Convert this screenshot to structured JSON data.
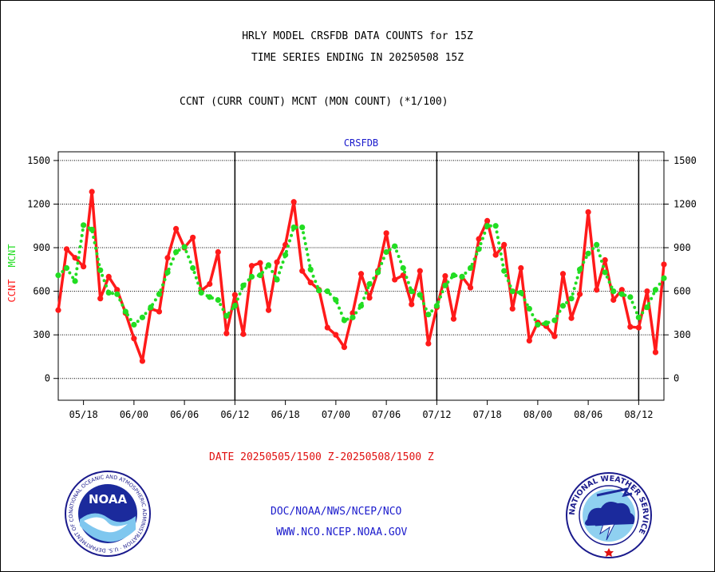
{
  "header": {
    "title_line1": "HRLY MODEL CRSFDB DATA COUNTS for 15Z",
    "title_line2": "TIME SERIES ENDING IN 20250508 15Z",
    "subtitle": "CCNT (CURR COUNT) MCNT (MON COUNT) (*1/100)"
  },
  "footer": {
    "date_range": "DATE 20250505/1500 Z-20250508/1500 Z",
    "link1": "DOC/NOAA/NWS/NCEP/NCO",
    "link2": "WWW.NCO.NCEP.NOAA.GOV"
  },
  "logos": {
    "noaa_text": "NOAA",
    "noaa_ring": "NATIONAL OCEANIC AND ATMOSPHERIC ADMINISTRATION · U.S. DEPARTMENT OF COMMERCE",
    "nws_ring": "NATIONAL WEATHER SERVICE"
  },
  "colors": {
    "ccnt": "#ff1a1a",
    "mcnt": "#22dd22",
    "panel_label": "#1a1acc",
    "footer_red": "#e01010",
    "footer_blue": "#1a1acc"
  },
  "chart_data": {
    "type": "line",
    "panel_label": "CRSFDB",
    "ylabel_red": "CCNT",
    "ylabel_green": "MCNT",
    "ylim": [
      -150,
      1560
    ],
    "yticks": [
      0,
      300,
      600,
      900,
      1200,
      1500
    ],
    "ytick_labels": [
      "0",
      "300",
      "600",
      "900",
      "1200",
      "1500"
    ],
    "xlim": [
      0,
      72
    ],
    "xticks": [
      3,
      9,
      15,
      21,
      27,
      33,
      39,
      45,
      51,
      57,
      63,
      69
    ],
    "xtick_labels": [
      "05/18",
      "06/00",
      "06/06",
      "06/12",
      "06/18",
      "07/00",
      "07/06",
      "07/12",
      "07/18",
      "08/00",
      "08/06",
      "08/12"
    ],
    "day_boundaries": [
      21,
      45,
      69
    ],
    "grid": true,
    "series": [
      {
        "name": "CCNT",
        "style": "solid",
        "x": [
          0,
          1,
          2,
          3,
          4,
          5,
          6,
          7,
          8,
          9,
          10,
          11,
          12,
          13,
          14,
          15,
          16,
          17,
          18,
          19,
          20,
          21,
          22,
          23,
          24,
          25,
          26,
          27,
          28,
          29,
          30,
          31,
          32,
          33,
          34,
          35,
          36,
          37,
          38,
          39,
          40,
          41,
          42,
          43,
          44,
          45,
          46,
          47,
          48,
          49,
          50,
          51,
          52,
          53,
          54,
          55,
          56,
          57,
          58,
          59,
          60,
          61,
          62,
          63,
          64,
          65,
          66,
          67,
          68,
          69,
          70,
          71,
          72
        ],
        "values": [
          470,
          890,
          830,
          770,
          1285,
          550,
          700,
          610,
          450,
          275,
          120,
          480,
          460,
          830,
          1030,
          900,
          970,
          605,
          650,
          870,
          310,
          575,
          305,
          775,
          795,
          470,
          800,
          920,
          1215,
          740,
          660,
          610,
          350,
          300,
          215,
          450,
          720,
          555,
          740,
          1000,
          680,
          710,
          510,
          740,
          240,
          490,
          705,
          410,
          700,
          625,
          960,
          1085,
          850,
          920,
          480,
          760,
          260,
          385,
          360,
          290,
          720,
          415,
          580,
          1145,
          610,
          815,
          540,
          610,
          355,
          350,
          600,
          180,
          785
        ]
      },
      {
        "name": "MCNT",
        "style": "dotted",
        "x": [
          0,
          1,
          2,
          3,
          4,
          5,
          6,
          7,
          8,
          9,
          10,
          11,
          12,
          13,
          14,
          15,
          16,
          17,
          18,
          19,
          20,
          21,
          22,
          23,
          24,
          25,
          26,
          27,
          28,
          29,
          30,
          31,
          32,
          33,
          34,
          35,
          36,
          37,
          38,
          39,
          40,
          41,
          42,
          43,
          44,
          45,
          46,
          47,
          48,
          49,
          50,
          51,
          52,
          53,
          54,
          55,
          56,
          57,
          58,
          59,
          60,
          61,
          62,
          63,
          64,
          65,
          66,
          67,
          68,
          69,
          70,
          71,
          72
        ],
        "values": [
          710,
          760,
          670,
          1055,
          1025,
          745,
          590,
          580,
          460,
          370,
          420,
          490,
          580,
          730,
          870,
          905,
          760,
          590,
          560,
          540,
          430,
          500,
          640,
          700,
          710,
          780,
          680,
          850,
          1040,
          1040,
          750,
          605,
          600,
          540,
          400,
          420,
          500,
          650,
          730,
          870,
          910,
          760,
          600,
          575,
          440,
          500,
          640,
          710,
          700,
          760,
          890,
          1050,
          1050,
          740,
          600,
          590,
          480,
          370,
          380,
          400,
          500,
          550,
          750,
          860,
          920,
          730,
          600,
          580,
          560,
          420,
          490,
          610,
          690
        ]
      }
    ]
  }
}
